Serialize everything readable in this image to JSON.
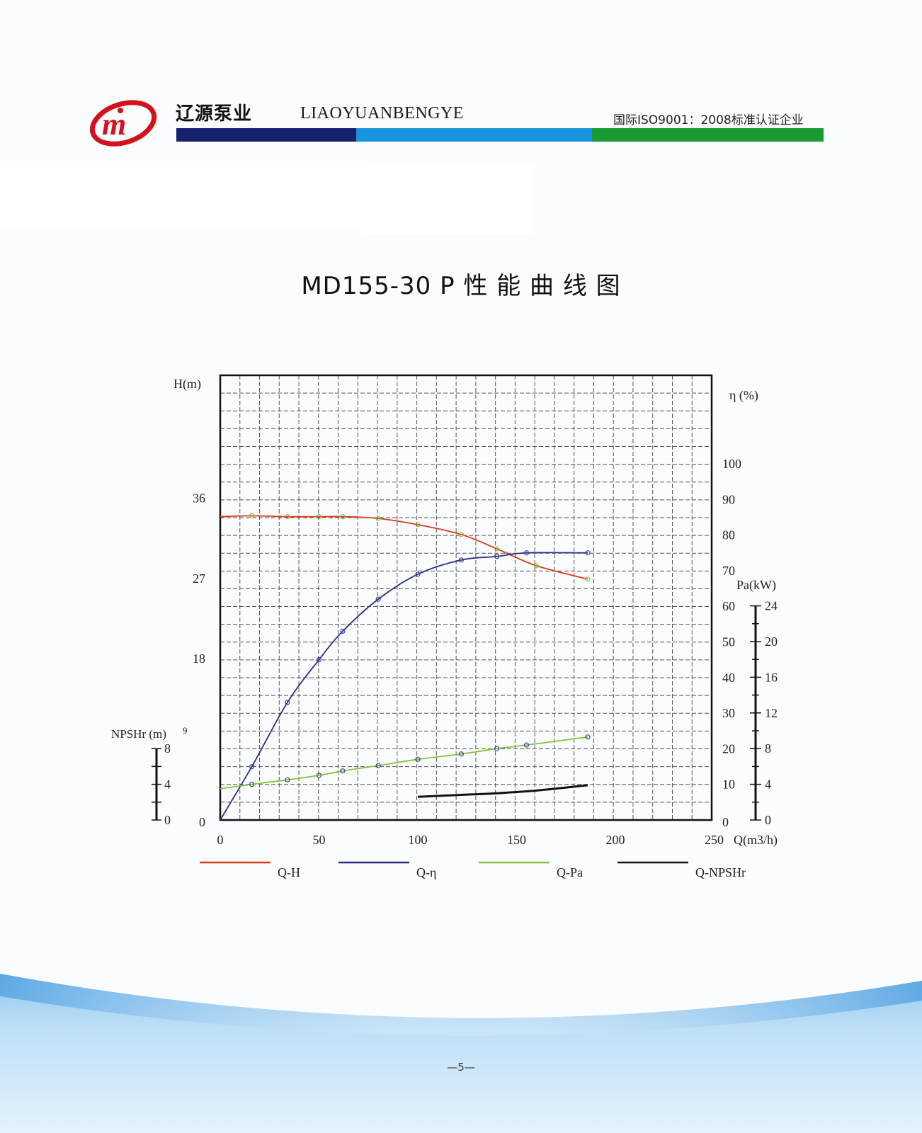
{
  "header": {
    "brand_cn": "辽源泵业",
    "brand_en": "LIAOYUANBENGYE",
    "certification": "国际ISO9001：2008标准认证企业",
    "stripe_colors": [
      "#17216e",
      "#1893dd",
      "#1a9a33"
    ]
  },
  "title": "MD155-30 P 性 能 曲 线 图",
  "page_number": "—5—",
  "chart_data": {
    "type": "line",
    "x_label": "Q(m3/h)",
    "x_ticks": [
      "0",
      "50",
      "100",
      "150",
      "200",
      "250"
    ],
    "xlim": [
      0,
      250
    ],
    "grid": true,
    "axes": {
      "H": {
        "label": "H(m)",
        "ticks": [
          "0",
          "18",
          "27",
          "36"
        ],
        "range": [
          0,
          45
        ]
      },
      "eta": {
        "label": "η (%)",
        "ticks": [
          "0",
          "10",
          "20",
          "30",
          "40",
          "50",
          "60",
          "70",
          "80",
          "90",
          "100"
        ],
        "range": [
          0,
          100
        ]
      },
      "Pa": {
        "label": "Pa(kW)",
        "ticks": [
          "0",
          "4",
          "8",
          "12",
          "16",
          "20",
          "24"
        ],
        "range": [
          0,
          24
        ]
      },
      "NPSHr": {
        "label": "NPSHr (m)",
        "ticks": [
          "0",
          "4",
          "8"
        ],
        "extra_tick": "9",
        "range": [
          0,
          8
        ]
      }
    },
    "series": [
      {
        "name": "Q-H",
        "color": "#d63a1c",
        "axis": "H",
        "x": [
          0,
          16,
          34,
          50,
          62,
          80,
          100,
          122,
          140,
          160,
          186
        ],
        "y": [
          34.0,
          34.1,
          34.0,
          34.0,
          34.0,
          33.8,
          33.1,
          32.0,
          30.4,
          28.5,
          27.0
        ]
      },
      {
        "name": "Q-η",
        "color": "#2c2f8a",
        "axis": "eta",
        "x": [
          0,
          16,
          34,
          50,
          62,
          80,
          100,
          122,
          140,
          155,
          186
        ],
        "y": [
          0,
          15,
          33,
          45,
          53,
          62,
          69,
          73,
          74,
          75,
          75
        ]
      },
      {
        "name": "Q-Pa",
        "color": "#82c341",
        "axis": "Pa",
        "x": [
          0,
          16,
          34,
          50,
          62,
          80,
          100,
          122,
          140,
          155,
          186
        ],
        "y": [
          3.5,
          4.0,
          4.5,
          5.0,
          5.5,
          6.1,
          6.8,
          7.4,
          8.0,
          8.4,
          9.3
        ]
      },
      {
        "name": "Q-NPSHr",
        "color": "#111111",
        "axis": "NPSHr",
        "x": [
          100,
          120,
          140,
          160,
          186
        ],
        "y": [
          2.6,
          2.8,
          3.0,
          3.3,
          3.9
        ]
      }
    ]
  }
}
